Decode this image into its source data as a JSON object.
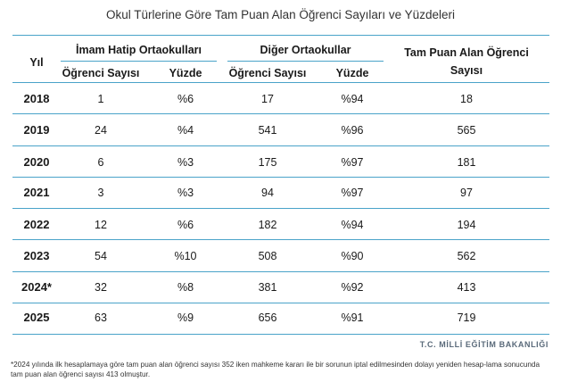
{
  "title": "Okul Türlerine Göre Tam Puan Alan Öğrenci Sayıları ve Yüzdeleri",
  "headers": {
    "year": "Yıl",
    "group1": "İmam Hatip Ortaokulları",
    "group2": "Diğer Ortaokullar",
    "total_line1": "Tam Puan Alan Öğrenci",
    "total_line2": "Sayısı",
    "count": "Öğrenci Sayısı",
    "percent": "Yüzde"
  },
  "rows": [
    {
      "year": "2018",
      "ih_count": "1",
      "ih_pct": "%6",
      "other_count": "17",
      "other_pct": "%94",
      "total": "18"
    },
    {
      "year": "2019",
      "ih_count": "24",
      "ih_pct": "%4",
      "other_count": "541",
      "other_pct": "%96",
      "total": "565"
    },
    {
      "year": "2020",
      "ih_count": "6",
      "ih_pct": "%3",
      "other_count": "175",
      "other_pct": "%97",
      "total": "181"
    },
    {
      "year": "2021",
      "ih_count": "3",
      "ih_pct": "%3",
      "other_count": "94",
      "other_pct": "%97",
      "total": "97"
    },
    {
      "year": "2022",
      "ih_count": "12",
      "ih_pct": "%6",
      "other_count": "182",
      "other_pct": "%94",
      "total": "194"
    },
    {
      "year": "2023",
      "ih_count": "54",
      "ih_pct": "%10",
      "other_count": "508",
      "other_pct": "%90",
      "total": "562"
    },
    {
      "year": "2024*",
      "ih_count": "32",
      "ih_pct": "%8",
      "other_count": "381",
      "other_pct": "%92",
      "total": "413"
    },
    {
      "year": "2025",
      "ih_count": "63",
      "ih_pct": "%9",
      "other_count": "656",
      "other_pct": "%91",
      "total": "719"
    }
  ],
  "source": "T.C. MİLLİ EĞİTİM BAKANLIĞI",
  "footnote": "*2024 yılında ilk hesaplamaya göre tam puan alan öğrenci sayısı 352 iken mahkeme kararı ile bir sorunun iptal edilmesinden dolayı yeniden hesap-lama sonucunda tam puan alan öğrenci sayısı 413 olmuştur.",
  "colors": {
    "rule": "#4aa3c9",
    "text": "#1a1a1a",
    "source": "#5a6a7a"
  }
}
